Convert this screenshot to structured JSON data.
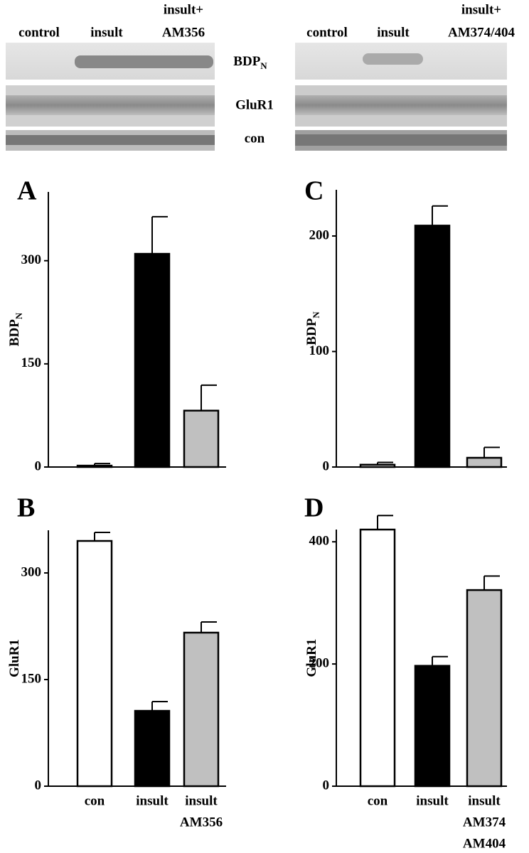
{
  "blots": {
    "left": {
      "lanes": [
        "control",
        "insult",
        "insult+",
        "AM356"
      ]
    },
    "right": {
      "lanes": [
        "control",
        "insult",
        "insult+",
        "AM374/404"
      ]
    },
    "rows": [
      {
        "text": "BDP",
        "sub": "N"
      },
      {
        "text": "GluR1"
      },
      {
        "text": "con"
      }
    ]
  },
  "chart_data": [
    {
      "type": "bar",
      "panel": "A",
      "ylabel": "BDP",
      "ylabel_sub": "N",
      "categories": [
        null,
        null,
        null
      ],
      "values": [
        2,
        310,
        82
      ],
      "errors": [
        3,
        54,
        37
      ],
      "colors": [
        "#ffffff",
        "#000000",
        "#c0c0c0"
      ],
      "ylim": [
        0,
        400
      ],
      "yticks": [
        0,
        150,
        300
      ]
    },
    {
      "type": "bar",
      "panel": "B",
      "ylabel": "GluR1",
      "categories": [
        [
          "con"
        ],
        [
          "insult"
        ],
        [
          "insult",
          "AM356"
        ]
      ],
      "values": [
        345,
        106,
        216
      ],
      "errors": [
        12,
        13,
        15
      ],
      "colors": [
        "#ffffff",
        "#000000",
        "#c0c0c0"
      ],
      "ylim": [
        0,
        360
      ],
      "yticks": [
        0,
        150,
        300
      ]
    },
    {
      "type": "bar",
      "panel": "C",
      "ylabel": "BDP",
      "ylabel_sub": "N",
      "categories": [
        null,
        null,
        null
      ],
      "values": [
        2,
        209,
        8
      ],
      "errors": [
        2,
        17,
        9
      ],
      "colors": [
        "#ffffff",
        "#000000",
        "#c0c0c0"
      ],
      "ylim": [
        0,
        240
      ],
      "yticks": [
        0,
        100,
        200
      ]
    },
    {
      "type": "bar",
      "panel": "D",
      "ylabel": "GluR1",
      "categories": [
        [
          "con"
        ],
        [
          "insult"
        ],
        [
          "insult",
          "AM374",
          "AM404"
        ]
      ],
      "values": [
        420,
        197,
        321
      ],
      "errors": [
        23,
        15,
        23
      ],
      "colors": [
        "#ffffff",
        "#000000",
        "#c0c0c0"
      ],
      "ylim": [
        0,
        420
      ],
      "yticks": [
        0,
        200,
        400
      ]
    }
  ]
}
